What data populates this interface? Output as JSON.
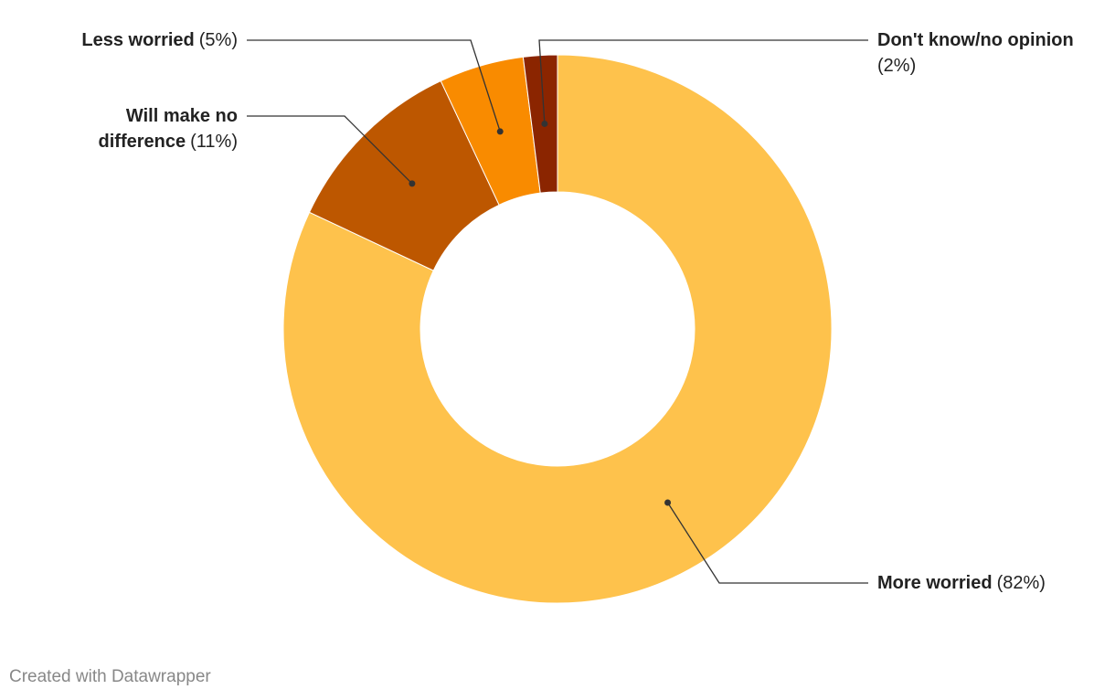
{
  "chart_data": {
    "type": "donut",
    "categories": [
      "More worried",
      "Will make no difference",
      "Less worried",
      "Don't know/no opinion"
    ],
    "values": [
      82,
      11,
      5,
      2
    ],
    "value_labels": [
      "(82%)",
      "(11%)",
      "(5%)",
      "(2%)"
    ],
    "colors": [
      "#fec24c",
      "#bd5700",
      "#f98b00",
      "#8b2500"
    ],
    "footer": "Created with Datawrapper"
  }
}
